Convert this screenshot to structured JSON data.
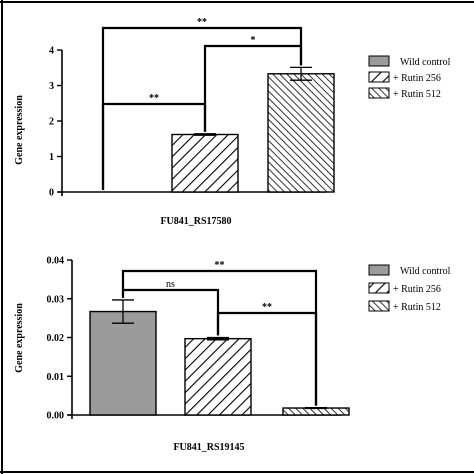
{
  "colors": {
    "wild_fill": "#9b9b9b",
    "axis": "#000000",
    "background": "#ffffff"
  },
  "legend_labels": [
    "Wild control",
    "+ Rutin 256",
    "+ Rutin 512"
  ],
  "chart_data": [
    {
      "type": "bar",
      "xlabel": "FU841_RS17580",
      "ylabel": "Gene expression",
      "ylim": [
        0,
        4
      ],
      "yticks": [
        "0",
        "1",
        "2",
        "3",
        "4"
      ],
      "legend": [
        "Wild control",
        "+ Rutin 256",
        "+ Rutin 512"
      ],
      "legend_position": "right",
      "categories": [
        "Wild control",
        "+ Rutin 256",
        "+ Rutin 512"
      ],
      "values": [
        0,
        1.62,
        3.33
      ],
      "errors": [
        0,
        0.02,
        0.18
      ],
      "patterns": [
        "solid",
        "hatch-wide",
        "hatch-dense"
      ],
      "significance": [
        {
          "from": 0,
          "to": 1,
          "label": "**"
        },
        {
          "from": 1,
          "to": 2,
          "label": "*"
        },
        {
          "from": 0,
          "to": 2,
          "label": "**"
        }
      ]
    },
    {
      "type": "bar",
      "xlabel": "FU841_RS19145",
      "ylabel": "Gene expression",
      "ylim": [
        0,
        0.04
      ],
      "yticks": [
        "0.00",
        "0.01",
        "0.02",
        "0.03",
        "0.04"
      ],
      "legend": [
        "Wild control",
        "+ Rutin 256",
        "+ Rutin 512"
      ],
      "legend_position": "right",
      "categories": [
        "Wild control",
        "+ Rutin 256",
        "+ Rutin 512"
      ],
      "values": [
        0.0267,
        0.0197,
        0.0018
      ],
      "errors": [
        0.003,
        0.0003,
        0.0001
      ],
      "patterns": [
        "solid",
        "hatch-wide",
        "hatch-dense"
      ],
      "significance": [
        {
          "from": 0,
          "to": 1,
          "label": "ns"
        },
        {
          "from": 1,
          "to": 2,
          "label": "**"
        },
        {
          "from": 0,
          "to": 2,
          "label": "**"
        }
      ]
    }
  ]
}
